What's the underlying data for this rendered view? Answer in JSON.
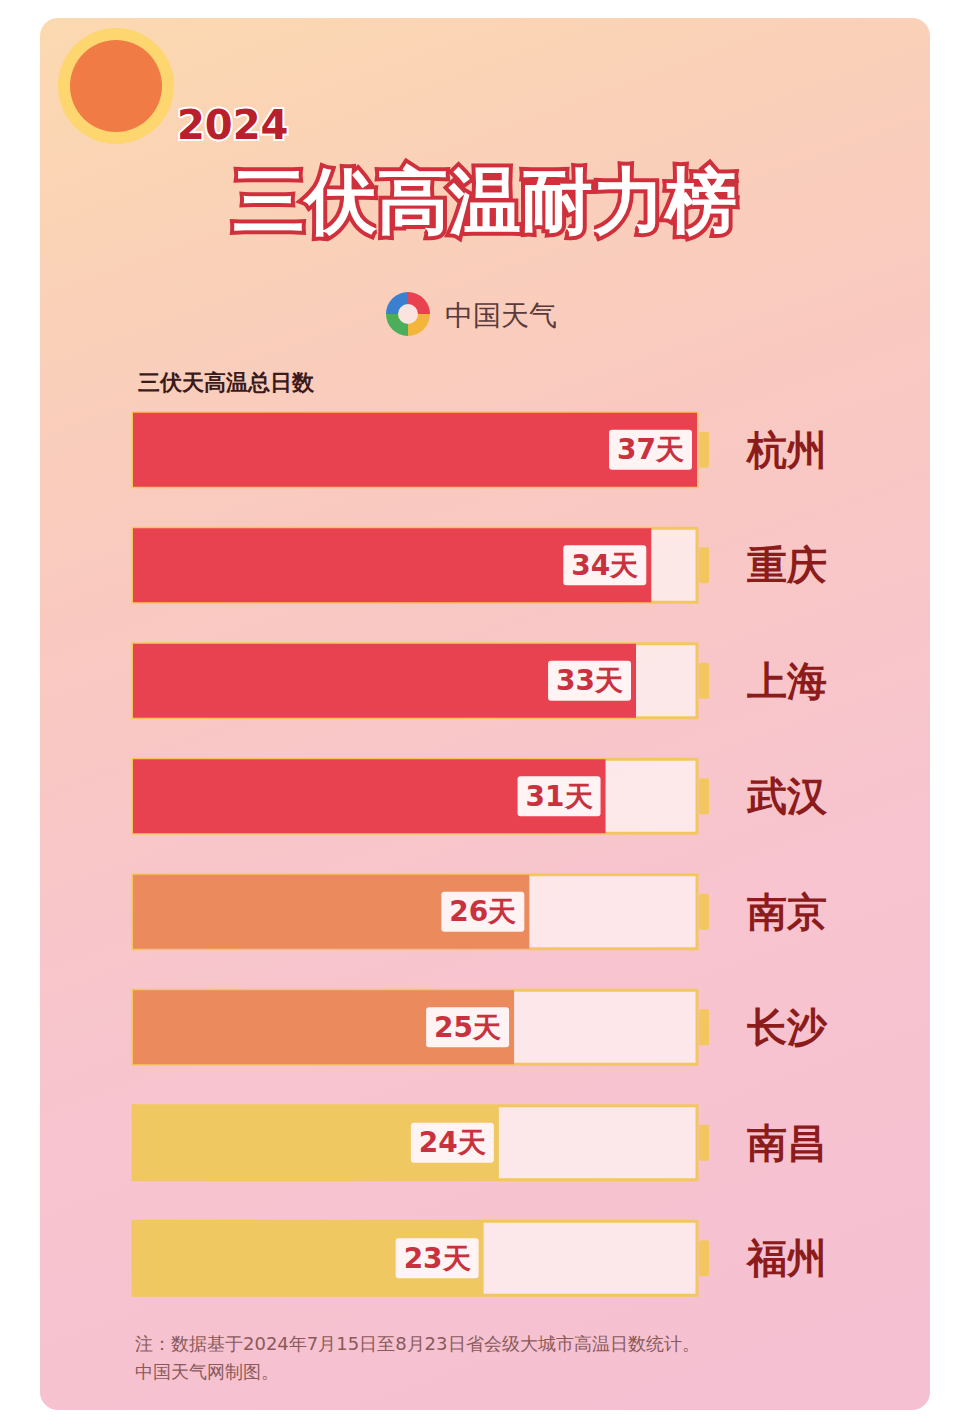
{
  "header": {
    "year": "2024",
    "title": "三伏高温耐力榜",
    "source_logo": "中国天气"
  },
  "chart_data": {
    "type": "bar",
    "title": "三伏天高温总日数",
    "orientation": "horizontal",
    "categories": [
      "杭州",
      "重庆",
      "上海",
      "武汉",
      "南京",
      "长沙",
      "南昌",
      "福州"
    ],
    "values": [
      37,
      34,
      33,
      31,
      26,
      25,
      24,
      23
    ],
    "value_labels": [
      "37天",
      "34天",
      "33天",
      "31天",
      "26天",
      "25天",
      "24天",
      "23天"
    ],
    "colors": [
      "#e8414f",
      "#e8414f",
      "#e8414f",
      "#e8414f",
      "#eb8a5c",
      "#eb8a5c",
      "#f0c862",
      "#f0c862"
    ],
    "xlim": [
      0,
      37
    ],
    "xticks": [
      0,
      37
    ],
    "tick_labels": "y",
    "grid": false,
    "data_labels": true,
    "notes": [
      "注：数据基于2024年7月15日至8月23日省会级大城市高温日数统计。",
      "中国天气网制图。"
    ]
  }
}
